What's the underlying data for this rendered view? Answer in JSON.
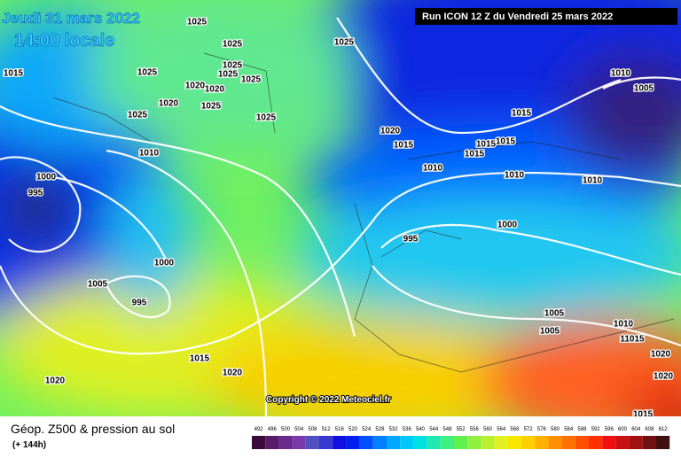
{
  "header": {
    "date": "Jeudi 31 mars 2022",
    "time": "14:00 locale",
    "run": "Run ICON 12 Z du Vendredi 25 mars 2022"
  },
  "map": {
    "copyright": "Copyright © 2022 Meteociel.fr",
    "isobar_labels": [
      "1025",
      "1025",
      "1025",
      "1025",
      "1025",
      "1025",
      "1025",
      "1025",
      "1025",
      "1025",
      "1020",
      "1020",
      "1020",
      "1020",
      "1020",
      "1020",
      "1020",
      "1020",
      "1015",
      "1015",
      "1015",
      "1015",
      "1015",
      "1015",
      "1015",
      "1015",
      "1010",
      "1010",
      "1010",
      "1010",
      "1010",
      "1010",
      "1005",
      "1005",
      "1005",
      "1005",
      "1000",
      "1000",
      "1000",
      "995",
      "995",
      "995",
      "11015"
    ]
  },
  "footer": {
    "title": "Géop. Z500 & pression au sol",
    "lead": "(+ 144h)",
    "scale": [
      492,
      496,
      500,
      504,
      508,
      512,
      516,
      520,
      524,
      528,
      532,
      536,
      540,
      544,
      548,
      552,
      556,
      560,
      564,
      568,
      572,
      576,
      580,
      584,
      588,
      592,
      596,
      600,
      604,
      608,
      612
    ],
    "scale_colors": [
      "#3a0a3a",
      "#5a1a6a",
      "#6a2a8a",
      "#7a3aaa",
      "#5050c0",
      "#3838d0",
      "#1010e0",
      "#0020f0",
      "#0050ff",
      "#0080ff",
      "#00a8ff",
      "#00c8f8",
      "#00e0e0",
      "#20e8b0",
      "#40f080",
      "#60f050",
      "#90f040",
      "#b8f030",
      "#e0f020",
      "#f8e800",
      "#ffd000",
      "#ffb000",
      "#ff9000",
      "#ff7000",
      "#ff5000",
      "#ff3000",
      "#f01010",
      "#c81010",
      "#a01010",
      "#701010",
      "#401010"
    ]
  }
}
